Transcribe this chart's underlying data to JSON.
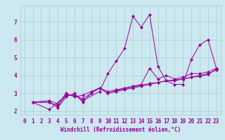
{
  "xlabel": "Windchill (Refroidissement éolien,°C)",
  "ylabel": "",
  "background_color": "#cce8f0",
  "line_color": "#990099",
  "grid_color": "#aacccc",
  "xlim": [
    -0.5,
    23.5
  ],
  "ylim": [
    1.8,
    7.9
  ],
  "xticks": [
    0,
    1,
    2,
    3,
    4,
    5,
    6,
    7,
    8,
    9,
    10,
    11,
    12,
    13,
    14,
    15,
    16,
    17,
    18,
    19,
    20,
    21,
    22,
    23
  ],
  "yticks": [
    2,
    3,
    4,
    5,
    6,
    7
  ],
  "lines": [
    {
      "x": [
        1,
        3,
        5,
        6,
        7,
        9,
        10,
        11,
        12,
        13,
        14,
        15,
        16,
        17,
        18,
        19,
        20,
        21,
        22,
        23
      ],
      "y": [
        2.5,
        2.1,
        2.9,
        2.9,
        2.6,
        3.1,
        4.1,
        4.8,
        5.5,
        7.3,
        6.7,
        7.4,
        4.5,
        3.7,
        3.5,
        3.5,
        4.9,
        5.7,
        6.0,
        4.4
      ]
    },
    {
      "x": [
        1,
        3,
        4,
        5,
        6,
        7,
        8,
        9,
        10,
        11,
        12,
        13,
        14,
        15,
        16,
        17,
        18,
        19,
        20,
        21,
        22,
        23
      ],
      "y": [
        2.5,
        2.5,
        2.2,
        2.8,
        3.0,
        2.5,
        3.0,
        3.3,
        3.0,
        3.1,
        3.2,
        3.3,
        3.4,
        3.5,
        3.6,
        3.7,
        3.7,
        3.8,
        3.9,
        4.0,
        4.1,
        4.3
      ]
    },
    {
      "x": [
        1,
        3,
        4,
        5,
        6,
        7,
        8,
        9,
        10,
        11,
        12,
        13,
        14,
        15,
        16,
        17,
        18,
        19,
        20,
        21,
        22,
        23
      ],
      "y": [
        2.5,
        2.6,
        2.4,
        3.0,
        2.8,
        2.9,
        3.1,
        3.3,
        3.1,
        3.2,
        3.3,
        3.4,
        3.5,
        4.4,
        3.8,
        4.0,
        3.8,
        3.9,
        4.1,
        4.1,
        4.2,
        4.4
      ]
    },
    {
      "x": [
        1,
        3,
        4,
        5,
        6,
        7,
        8,
        9,
        10,
        11,
        12,
        13,
        14,
        15,
        16,
        17,
        18,
        19,
        20,
        21,
        22,
        23
      ],
      "y": [
        2.5,
        2.5,
        2.3,
        2.9,
        2.9,
        2.7,
        3.0,
        3.3,
        3.0,
        3.15,
        3.25,
        3.35,
        3.45,
        3.55,
        3.6,
        3.7,
        3.75,
        3.8,
        3.9,
        3.95,
        4.05,
        4.35
      ]
    }
  ],
  "tick_fontsize": 5.5,
  "xlabel_fontsize": 5.5
}
